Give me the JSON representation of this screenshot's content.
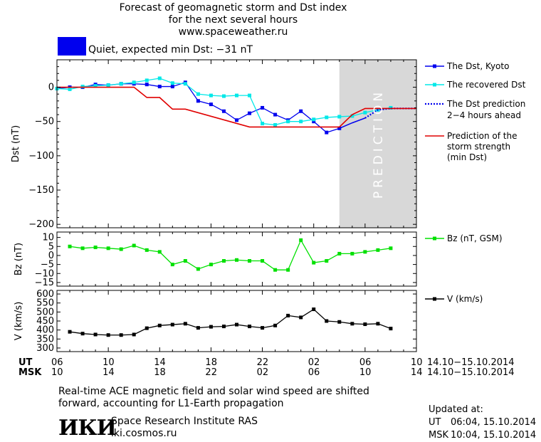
{
  "header": {
    "title_line1": "Forecast of geomagnetic storm and Dst index",
    "title_line2": "for the next several hours",
    "title_line3": "www.spaceweather.ru",
    "status_color": "#0000ee",
    "status_text": "Quiet, expected min Dst: −31 nT"
  },
  "legend": {
    "dst_kyoto": "The Dst, Kyoto",
    "dst_recovered": "The recovered Dst",
    "dst_prediction_l1": "The Dst prediction",
    "dst_prediction_l2": "2−4 hours ahead",
    "strength_l1": "Prediction of the",
    "strength_l2": "storm strength",
    "strength_l3": "(min Dst)",
    "bz": "Bz (nT, GSM)",
    "v": "V (km/s)"
  },
  "prediction_label": "PREDICTION",
  "time_axis": {
    "ut_label": "UT",
    "msk_label": "MSK",
    "ut_ticks": [
      "06",
      "10",
      "14",
      "18",
      "22",
      "02",
      "06",
      "10"
    ],
    "msk_ticks": [
      "10",
      "14",
      "18",
      "22",
      "02",
      "06",
      "10",
      "14"
    ],
    "date_range_ut": "14.10−15.10.2014",
    "date_range_msk": "14.10−15.10.2014"
  },
  "notes": {
    "line1": "Real-time ACE magnetic field and solar wind speed are shifted",
    "line2": "forward, accounting for L1-Earth propagation"
  },
  "updated": {
    "label": "Updated at:",
    "ut_label": "UT",
    "ut_value": "06:04, 15.10.2014",
    "msk_label": "MSK",
    "msk_value": "10:04, 15.10.2014"
  },
  "institute": {
    "logo_text": "ИКИ",
    "name": "Space Research Institute RAS",
    "site": "iki.cosmos.ru"
  },
  "colors": {
    "dst_kyoto": "#0000ee",
    "dst_recovered": "#00e8e8",
    "dst_prediction": "#0000ee",
    "storm_strength": "#e00000",
    "bz": "#00e000",
    "v": "#000000",
    "prediction_zone": "#d8d8d8"
  },
  "chart_data": [
    {
      "type": "line",
      "ylabel": "Dst (nT)",
      "x_domain": [
        6,
        34
      ],
      "ylim": [
        -205,
        40
      ],
      "yticks": [
        0,
        -50,
        -100,
        -150,
        -200
      ],
      "prediction_region": [
        28,
        34
      ],
      "series": [
        {
          "name": "The Dst, Kyoto",
          "marker": true,
          "x": [
            6,
            7,
            8,
            9,
            10,
            11,
            12,
            13,
            14,
            15,
            16,
            17,
            18,
            19,
            20,
            21,
            22,
            23,
            24,
            25,
            26,
            27,
            28
          ],
          "y": [
            -2,
            0,
            0,
            4,
            3,
            5,
            5,
            4,
            1,
            1,
            7,
            -20,
            -25,
            -35,
            -48,
            -38,
            -30,
            -40,
            -48,
            -35,
            -50,
            -66,
            -60
          ]
        },
        {
          "name": "",
          "marker": false,
          "x": [
            28,
            29,
            30
          ],
          "y": [
            -60,
            -52,
            -45
          ]
        },
        {
          "name": "The recovered Dst",
          "marker": true,
          "x": [
            6,
            7,
            8,
            9,
            10,
            11,
            12,
            13,
            14,
            15,
            16,
            17,
            18,
            19,
            20,
            21,
            22,
            23,
            24,
            25,
            26,
            27,
            28,
            29,
            30,
            31,
            32
          ],
          "y": [
            -2,
            -3,
            1,
            2,
            3,
            5,
            7,
            10,
            13,
            6,
            5,
            -10,
            -12,
            -13,
            -12,
            -12,
            -53,
            -55,
            -50,
            -50,
            -47,
            -44,
            -43,
            -42,
            -37,
            -33,
            -30
          ]
        },
        {
          "name": "The Dst prediction 2−4 hours ahead",
          "marker": false,
          "x": [
            30,
            31,
            32,
            33,
            34
          ],
          "y": [
            -45,
            -33,
            -31,
            -31,
            -31
          ]
        },
        {
          "name": "Prediction of the storm strength (min Dst)",
          "marker": false,
          "step": true,
          "x": [
            6,
            12,
            13,
            14,
            15,
            16,
            21,
            22,
            28,
            29,
            30,
            34
          ],
          "y": [
            0,
            0,
            -15,
            -15,
            -32,
            -32,
            -58,
            -58,
            -58,
            -40,
            -31,
            -31
          ]
        }
      ]
    },
    {
      "type": "line",
      "ylabel": "Bz (nT)",
      "x_domain": [
        6,
        34
      ],
      "ylim": [
        -17,
        13
      ],
      "yticks": [
        10,
        5,
        0,
        -5,
        -10,
        -15
      ],
      "series": [
        {
          "name": "Bz (nT, GSM)",
          "marker": true,
          "x": [
            7,
            8,
            9,
            10,
            11,
            12,
            13,
            14,
            15,
            16,
            17,
            18,
            19,
            20,
            21,
            22,
            23,
            24,
            25,
            26,
            27,
            28,
            29,
            30,
            31,
            32
          ],
          "y": [
            5,
            4,
            4.5,
            4,
            3.5,
            5.5,
            3,
            2,
            -5,
            -3,
            -7.5,
            -5,
            -3,
            -2.5,
            -3,
            -3,
            -8,
            -8,
            8.5,
            -4,
            -3,
            1,
            1,
            2,
            3,
            4
          ]
        }
      ]
    },
    {
      "type": "line",
      "ylabel": "V (km/s)",
      "x_domain": [
        6,
        34
      ],
      "ylim": [
        280,
        620
      ],
      "yticks": [
        600,
        550,
        500,
        450,
        400,
        350,
        300
      ],
      "series": [
        {
          "name": "V (km/s)",
          "marker": true,
          "x": [
            7,
            8,
            9,
            10,
            11,
            12,
            13,
            14,
            15,
            16,
            17,
            18,
            19,
            20,
            21,
            22,
            23,
            24,
            25,
            26,
            27,
            28,
            29,
            30,
            31,
            32
          ],
          "y": [
            390,
            380,
            375,
            372,
            372,
            375,
            410,
            425,
            430,
            435,
            412,
            418,
            420,
            430,
            420,
            412,
            425,
            480,
            470,
            515,
            450,
            445,
            435,
            432,
            435,
            408
          ]
        }
      ]
    }
  ]
}
